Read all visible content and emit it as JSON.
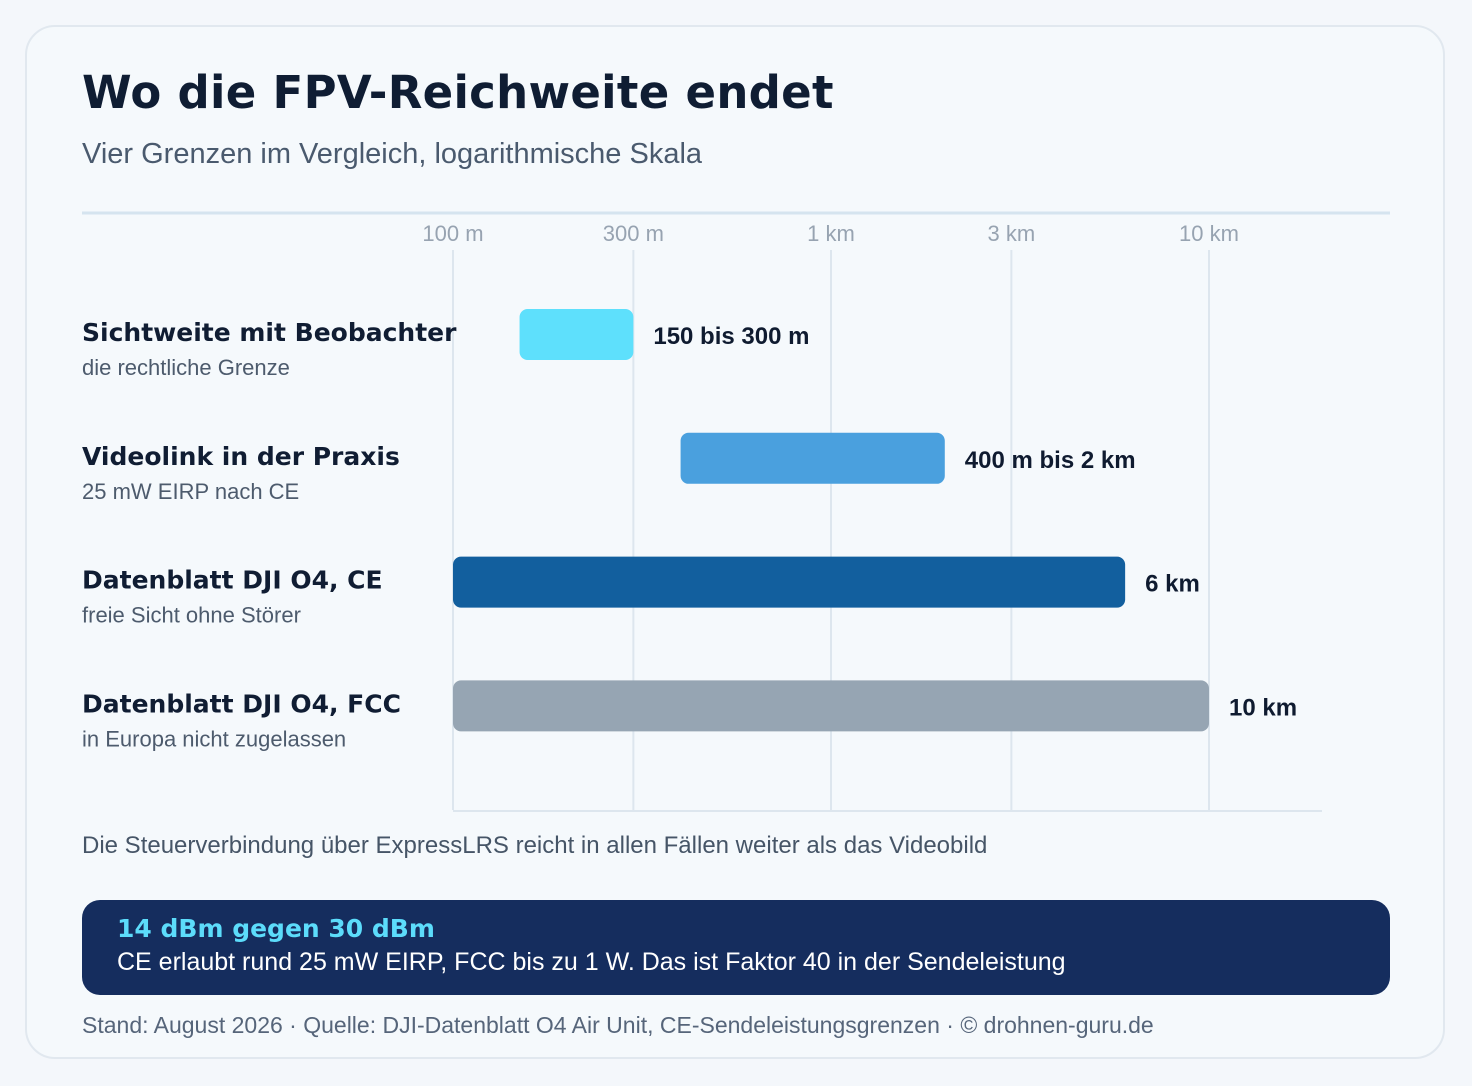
{
  "header": {
    "title": "Wo die FPV-Reichweite endet",
    "subtitle": "Vier Grenzen im Vergleich, logarithmische Skala"
  },
  "chart_data": {
    "type": "bar",
    "orientation": "horizontal",
    "x_scale": "log",
    "x_unit": "m",
    "xlim": [
      100,
      12000
    ],
    "grid": true,
    "ticks": [
      {
        "value": 100,
        "label": "100 m"
      },
      {
        "value": 300,
        "label": "300 m"
      },
      {
        "value": 1000,
        "label": "1 km"
      },
      {
        "value": 3000,
        "label": "3 km"
      },
      {
        "value": 10000,
        "label": "10 km"
      }
    ],
    "categories": [
      {
        "label": "Sichtweite mit Beobachter",
        "sublabel": "die rechtliche Grenze",
        "start": 150,
        "end": 300,
        "value_label": "150 bis 300 m",
        "color": "#5ee0fc"
      },
      {
        "label": "Videolink in der Praxis",
        "sublabel": "25 mW EIRP nach CE",
        "start": 400,
        "end": 2000,
        "value_label": "400 m bis 2 km",
        "color": "#4aa0de"
      },
      {
        "label": "Datenblatt DJI O4, CE",
        "sublabel": "freie Sicht ohne Störer",
        "start": 100,
        "end": 6000,
        "value_label": "6 km",
        "color": "#125f9e"
      },
      {
        "label": "Datenblatt DJI O4, FCC",
        "sublabel": "in Europa nicht zugelassen",
        "start": 100,
        "end": 10000,
        "value_label": "10 km",
        "color": "#96a5b3"
      }
    ]
  },
  "footnote": "Die Steuerverbindung über ExpressLRS reicht in allen Fällen weiter als das Videobild",
  "callout": {
    "title": "14 dBm gegen 30 dBm",
    "text": "CE erlaubt rund 25 mW EIRP, FCC bis zu 1 W. Das ist Faktor 40 in der Sendeleistung"
  },
  "source": "Stand: August 2026 · Quelle: DJI-Datenblatt O4 Air Unit, CE-Sendeleistungsgrenzen · © drohnen-guru.de"
}
